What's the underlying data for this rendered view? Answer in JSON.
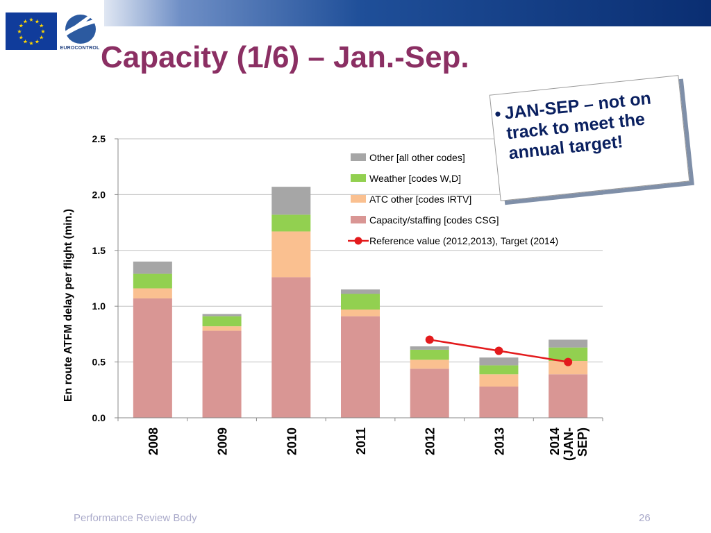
{
  "slide": {
    "title": "Capacity (1/6) – Jan.-Sep.",
    "logo_text": "EUROCONTROL",
    "callout_bullet": "•",
    "callout_text": "JAN-SEP – not on track to meet the annual target!",
    "footer_left": "Performance Review Body",
    "page_number": "26"
  },
  "colors": {
    "title": "#8b2f63",
    "callout_text": "#0a2060",
    "footer": "#a9a9c9"
  },
  "chart_data": {
    "type": "bar",
    "stacked": true,
    "categories": [
      "2008",
      "2009",
      "2010",
      "2011",
      "2012",
      "2013",
      "2014 (JAN-SEP)"
    ],
    "ylabel": "En route ATFM delay per flight (min.)",
    "xlabel": "",
    "ylim": [
      0,
      2.5
    ],
    "yticks": [
      "0.0",
      "0.5",
      "1.0",
      "1.5",
      "2.0",
      "2.5"
    ],
    "grid": true,
    "legend_position": "top-right",
    "series": [
      {
        "name": "Capacity/staffing [codes CSG]",
        "color": "#d99694",
        "values": [
          1.07,
          0.78,
          1.26,
          0.91,
          0.44,
          0.28,
          0.39
        ]
      },
      {
        "name": "ATC other [codes IRTV]",
        "color": "#fac090",
        "values": [
          0.09,
          0.04,
          0.41,
          0.06,
          0.08,
          0.11,
          0.12
        ]
      },
      {
        "name": "Weather [codes W,D]",
        "color": "#92d050",
        "values": [
          0.13,
          0.09,
          0.15,
          0.14,
          0.09,
          0.08,
          0.12
        ]
      },
      {
        "name": "Other [all other codes]",
        "color": "#a6a6a6",
        "values": [
          0.11,
          0.02,
          0.25,
          0.04,
          0.03,
          0.07,
          0.07
        ]
      }
    ],
    "legend_order": [
      3,
      2,
      1,
      0
    ],
    "reference_line": {
      "name": "Reference value (2012,2013), Target (2014)",
      "color": "#e31a1c",
      "categories": [
        "2012",
        "2013",
        "2014 (JAN-SEP)"
      ],
      "values": [
        0.7,
        0.6,
        0.5
      ]
    }
  }
}
